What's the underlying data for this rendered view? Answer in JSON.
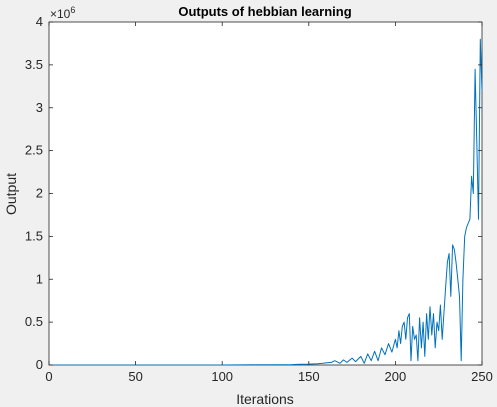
{
  "chart_data": {
    "type": "line",
    "title": "Outputs of hebbian learning",
    "xlabel": "Iterations",
    "ylabel": "Output",
    "xlim": [
      0,
      250
    ],
    "ylim": [
      0,
      4
    ],
    "y_exponent_label": "×10",
    "y_exponent": "6",
    "y_multiplier": 1000000,
    "x_ticks": [
      0,
      50,
      100,
      150,
      200,
      250
    ],
    "y_ticks": [
      0,
      0.5,
      1,
      1.5,
      2,
      2.5,
      3,
      3.5,
      4
    ],
    "x_tick_labels": [
      "0",
      "50",
      "100",
      "150",
      "200",
      "250"
    ],
    "y_tick_labels": [
      "0",
      "0.5",
      "1",
      "1.5",
      "2",
      "2.5",
      "3",
      "3.5",
      "4"
    ],
    "grid": false,
    "line_color": "#0072bd",
    "series": [
      {
        "x": [
          0,
          20,
          40,
          60,
          80,
          100,
          120,
          130,
          140,
          145,
          150,
          155,
          158,
          160,
          163,
          165,
          168,
          170,
          172,
          175,
          177,
          180,
          182,
          184,
          186,
          188,
          190,
          192,
          194,
          196,
          198,
          200,
          201,
          202,
          203,
          204,
          205,
          206,
          207,
          208,
          209,
          210,
          211,
          212,
          213,
          214,
          215,
          216,
          217,
          218,
          219,
          220,
          221,
          222,
          223,
          224,
          225,
          226,
          227,
          228,
          229,
          230,
          231,
          232,
          233,
          234,
          235,
          236,
          237,
          238,
          239,
          240,
          241,
          242,
          243,
          244,
          245,
          246,
          247,
          248,
          249,
          250
        ],
        "y": [
          0,
          0,
          0,
          0,
          0,
          0,
          0.002,
          0.003,
          0.005,
          0.008,
          0.01,
          0.015,
          0.02,
          0.025,
          0.03,
          0.05,
          0.02,
          0.06,
          0.03,
          0.08,
          0.04,
          0.1,
          0.02,
          0.13,
          0.05,
          0.16,
          0.05,
          0.2,
          0.12,
          0.25,
          0.15,
          0.3,
          0.2,
          0.4,
          0.25,
          0.45,
          0.5,
          0.3,
          0.55,
          0.6,
          0.05,
          0.45,
          0.3,
          0.35,
          0.05,
          0.55,
          0.2,
          0.5,
          0.1,
          0.6,
          0.3,
          0.68,
          0.35,
          0.6,
          0.2,
          0.5,
          0.4,
          0.7,
          0.3,
          0.6,
          0.9,
          1.2,
          1.3,
          0.8,
          1.4,
          1.35,
          1.2,
          1.0,
          0.8,
          0.05,
          1.0,
          1.5,
          1.6,
          1.65,
          1.7,
          2.2,
          2.0,
          3.45,
          2.6,
          1.7,
          3.8,
          3.2
        ]
      }
    ]
  }
}
